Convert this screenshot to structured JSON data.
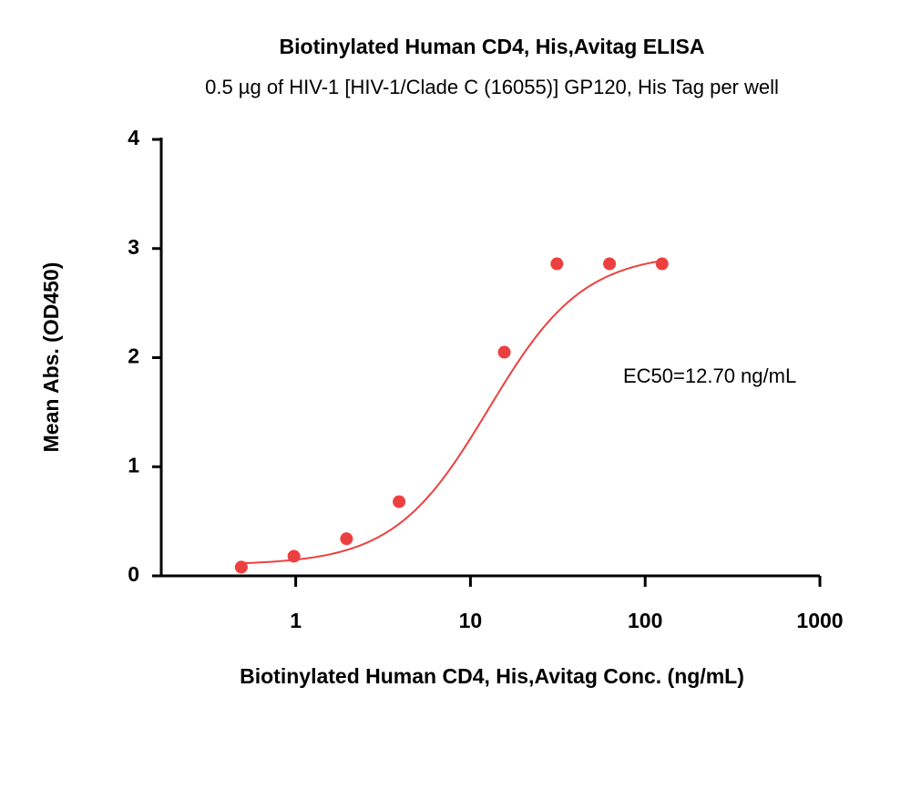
{
  "chart_data": {
    "type": "scatter",
    "title": "Biotinylated Human CD4, His,Avitag ELISA",
    "subtitle": "0.5 µg of HIV-1 [HIV-1/Clade C (16055)] GP120, His Tag per well",
    "x_label": "Biotinylated Human CD4, His,Avitag Conc. (ng/mL)",
    "y_label": "Mean Abs. (OD450)",
    "annotation": "EC50=12.70 ng/mL",
    "x": [
      0.488,
      0.977,
      1.953,
      3.906,
      15.625,
      31.25,
      62.5,
      125
    ],
    "values": [
      0.08,
      0.18,
      0.34,
      0.68,
      2.05,
      2.86,
      2.86,
      2.86
    ],
    "color": "#ec4040",
    "fit": {
      "bottom": 0.1,
      "top": 2.96,
      "ec50": 12.7,
      "hill": 1.6
    },
    "xlog": true,
    "xlim": [
      0.17,
      1000
    ],
    "xticks": [
      1,
      10,
      100,
      1000
    ],
    "ylim": [
      0,
      4
    ],
    "yticks": [
      0,
      1,
      2,
      3,
      4
    ]
  }
}
